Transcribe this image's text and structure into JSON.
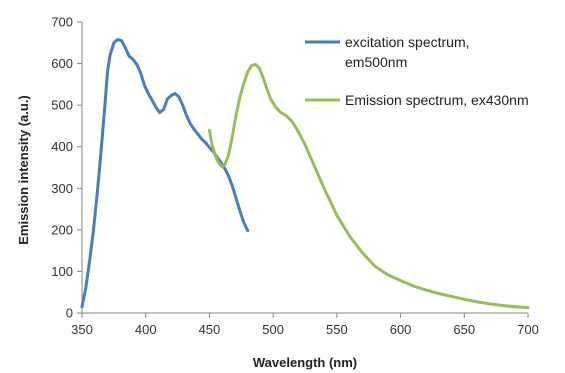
{
  "chart_data": {
    "type": "line",
    "xlabel": "Wavelength (nm)",
    "ylabel": "Emission intensity (a.u.)",
    "xlim": [
      350,
      700
    ],
    "ylim": [
      0,
      700
    ],
    "x_ticks": [
      "350",
      "400",
      "450",
      "500",
      "550",
      "600",
      "650",
      "700"
    ],
    "y_ticks": [
      "0",
      "100",
      "200",
      "300",
      "400",
      "500",
      "600",
      "700"
    ],
    "grid": false,
    "legend_position": "top-right",
    "series": [
      {
        "name": "excitation spectrum, em500nm",
        "color": "#4a7ebb",
        "x": [
          350,
          353,
          356,
          359,
          362,
          365,
          368,
          370,
          372,
          375,
          378,
          381,
          384,
          387,
          390,
          393,
          396,
          399,
          402,
          405,
          408,
          411,
          414,
          417,
          420,
          423,
          426,
          429,
          432,
          435,
          438,
          441,
          444,
          447,
          450,
          453,
          456,
          459,
          462,
          465,
          468,
          471,
          474,
          477,
          480
        ],
        "y": [
          15,
          60,
          125,
          200,
          290,
          390,
          500,
          580,
          620,
          650,
          658,
          655,
          638,
          618,
          610,
          598,
          578,
          548,
          528,
          512,
          495,
          482,
          490,
          515,
          523,
          528,
          520,
          500,
          475,
          455,
          442,
          430,
          418,
          410,
          398,
          388,
          375,
          362,
          348,
          330,
          305,
          275,
          245,
          218,
          198
        ]
      },
      {
        "name": "Emission spectrum, ex430nm",
        "color": "#9bbb59",
        "x": [
          450,
          452,
          454,
          456,
          458,
          460,
          462,
          465,
          468,
          471,
          474,
          477,
          480,
          483,
          486,
          489,
          492,
          495,
          498,
          502,
          506,
          510,
          515,
          520,
          525,
          530,
          540,
          550,
          560,
          570,
          580,
          590,
          600,
          610,
          620,
          630,
          640,
          650,
          660,
          670,
          680,
          690,
          700
        ],
        "y": [
          440,
          405,
          385,
          368,
          358,
          352,
          356,
          380,
          425,
          478,
          520,
          552,
          580,
          595,
          598,
          590,
          568,
          540,
          515,
          495,
          482,
          475,
          460,
          435,
          405,
          370,
          300,
          235,
          185,
          145,
          112,
          92,
          78,
          65,
          55,
          47,
          40,
          33,
          27,
          22,
          18,
          15,
          13
        ]
      }
    ]
  }
}
